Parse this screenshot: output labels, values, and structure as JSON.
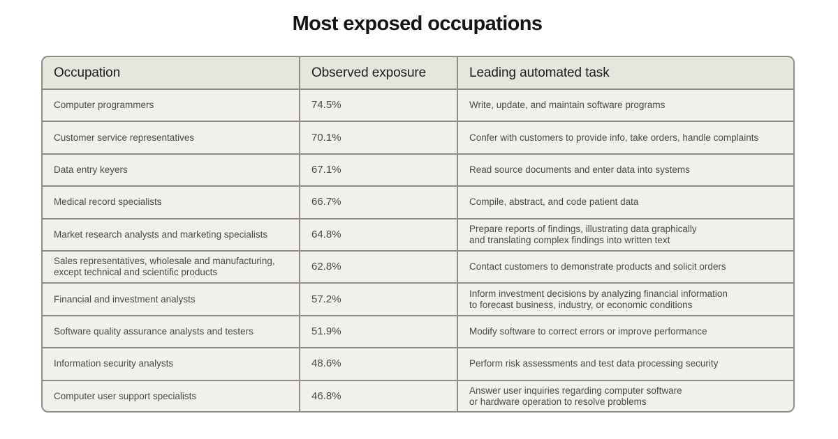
{
  "page": {
    "title": "Most exposed occupations"
  },
  "table": {
    "headers": [
      "Occupation",
      "Observed exposure",
      "Leading automated task"
    ],
    "rows": [
      {
        "occupation": [
          "Computer programmers"
        ],
        "exposure": "74.5%",
        "task": [
          "Write, update, and maintain software programs"
        ]
      },
      {
        "occupation": [
          "Customer service representatives"
        ],
        "exposure": "70.1%",
        "task": [
          "Confer with customers to provide info, take orders, handle complaints"
        ]
      },
      {
        "occupation": [
          "Data entry keyers"
        ],
        "exposure": "67.1%",
        "task": [
          "Read source documents and enter data into systems"
        ]
      },
      {
        "occupation": [
          "Medical record specialists"
        ],
        "exposure": "66.7%",
        "task": [
          "Compile, abstract, and code patient data"
        ]
      },
      {
        "occupation": [
          "Market research analysts and marketing specialists"
        ],
        "exposure": "64.8%",
        "task": [
          "Prepare reports of findings, illustrating data graphically",
          "and translating complex findings into written text"
        ]
      },
      {
        "occupation": [
          "Sales representatives, wholesale and manufacturing,",
          "except technical and scientific products"
        ],
        "exposure": "62.8%",
        "task": [
          "Contact customers to demonstrate products and solicit orders"
        ]
      },
      {
        "occupation": [
          "Financial and investment analysts"
        ],
        "exposure": "57.2%",
        "task": [
          "Inform investment decisions by analyzing financial information",
          "to forecast business, industry, or economic conditions"
        ]
      },
      {
        "occupation": [
          "Software quality assurance analysts and testers"
        ],
        "exposure": "51.9%",
        "task": [
          "Modify software to correct errors or improve performance"
        ]
      },
      {
        "occupation": [
          "Information security analysts"
        ],
        "exposure": "48.6%",
        "task": [
          "Perform risk assessments and test data processing security"
        ]
      },
      {
        "occupation": [
          "Computer user support specialists"
        ],
        "exposure": "46.8%",
        "task": [
          "Answer user inquiries regarding computer software",
          "or hardware operation to resolve problems"
        ]
      }
    ]
  },
  "colors": {
    "header_bg": "#e7e6de",
    "row_bg": "#f1f0ea",
    "border": "#8f8d86",
    "text": "#4b4a46"
  }
}
